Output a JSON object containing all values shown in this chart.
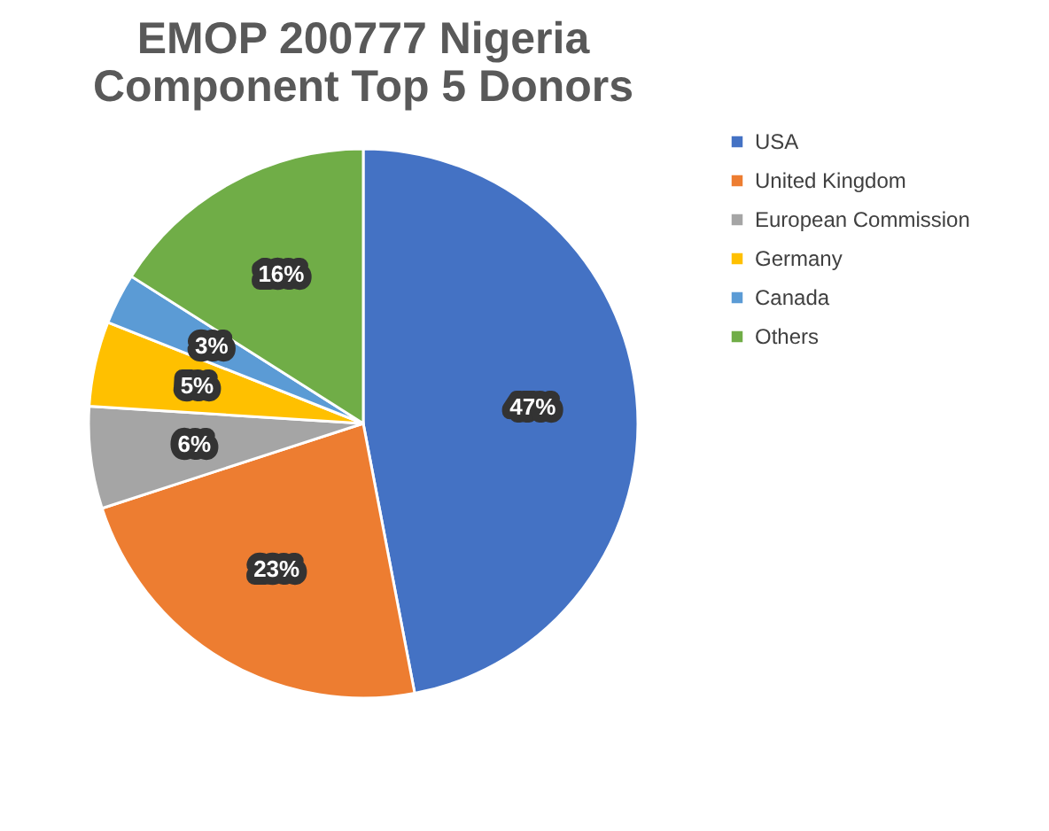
{
  "chart_data": {
    "type": "pie",
    "title": [
      "EMOP 200777 Nigeria",
      "Component Top 5 Donors"
    ],
    "categories": [
      "USA",
      "United Kingdom",
      "European Commission",
      "Germany",
      "Canada",
      "Others"
    ],
    "values": [
      47,
      23,
      6,
      5,
      3,
      16
    ],
    "value_labels": [
      "47%",
      "23%",
      "6%",
      "5%",
      "3%",
      "16%"
    ],
    "colors": [
      "#4472c4",
      "#ed7d31",
      "#a5a5a5",
      "#ffc000",
      "#5b9bd5",
      "#70ad47"
    ],
    "legend": "right"
  }
}
